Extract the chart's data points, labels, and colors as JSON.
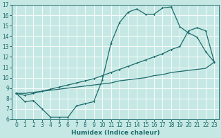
{
  "xlabel": "Humidex (Indice chaleur)",
  "bg_color": "#c6e8e4",
  "line_color": "#1a6b6b",
  "grid_color": "#aad4d0",
  "xlim": [
    -0.5,
    23.5
  ],
  "ylim": [
    6,
    17
  ],
  "yticks": [
    6,
    7,
    8,
    9,
    10,
    11,
    12,
    13,
    14,
    15,
    16,
    17
  ],
  "xticks": [
    0,
    1,
    2,
    3,
    4,
    5,
    6,
    7,
    8,
    9,
    10,
    11,
    12,
    13,
    14,
    15,
    16,
    17,
    18,
    19,
    20,
    21,
    22,
    23
  ],
  "line1_x": [
    0,
    1,
    2,
    3,
    4,
    5,
    6,
    7,
    8,
    9,
    10,
    11,
    12,
    13,
    14,
    15,
    16,
    17,
    18,
    19,
    20,
    21,
    22,
    23
  ],
  "line1_y": [
    8.5,
    7.7,
    7.8,
    7.0,
    6.2,
    6.2,
    6.2,
    7.3,
    7.5,
    7.7,
    9.8,
    13.3,
    15.3,
    16.3,
    16.6,
    16.1,
    16.1,
    16.7,
    16.8,
    14.9,
    14.3,
    13.9,
    12.5,
    11.5
  ],
  "line2_x": [
    0,
    1,
    2,
    3,
    4,
    5,
    6,
    7,
    8,
    9,
    10,
    11,
    12,
    13,
    14,
    15,
    16,
    17,
    18,
    19,
    20,
    21,
    22,
    23
  ],
  "line2_y": [
    8.5,
    8.3,
    8.5,
    8.7,
    8.9,
    9.1,
    9.3,
    9.5,
    9.7,
    9.9,
    10.2,
    10.5,
    10.8,
    11.1,
    11.4,
    11.7,
    12.0,
    12.3,
    12.7,
    13.0,
    14.5,
    14.8,
    14.5,
    11.5
  ],
  "line3_x": [
    0,
    1,
    2,
    3,
    4,
    5,
    6,
    7,
    8,
    9,
    10,
    11,
    12,
    13,
    14,
    15,
    16,
    17,
    18,
    19,
    20,
    21,
    22,
    23
  ],
  "line3_y": [
    8.5,
    8.5,
    8.6,
    8.7,
    8.8,
    8.9,
    9.0,
    9.1,
    9.2,
    9.3,
    9.4,
    9.5,
    9.7,
    9.8,
    9.9,
    10.0,
    10.2,
    10.3,
    10.5,
    10.6,
    10.7,
    10.8,
    10.9,
    11.5
  ]
}
